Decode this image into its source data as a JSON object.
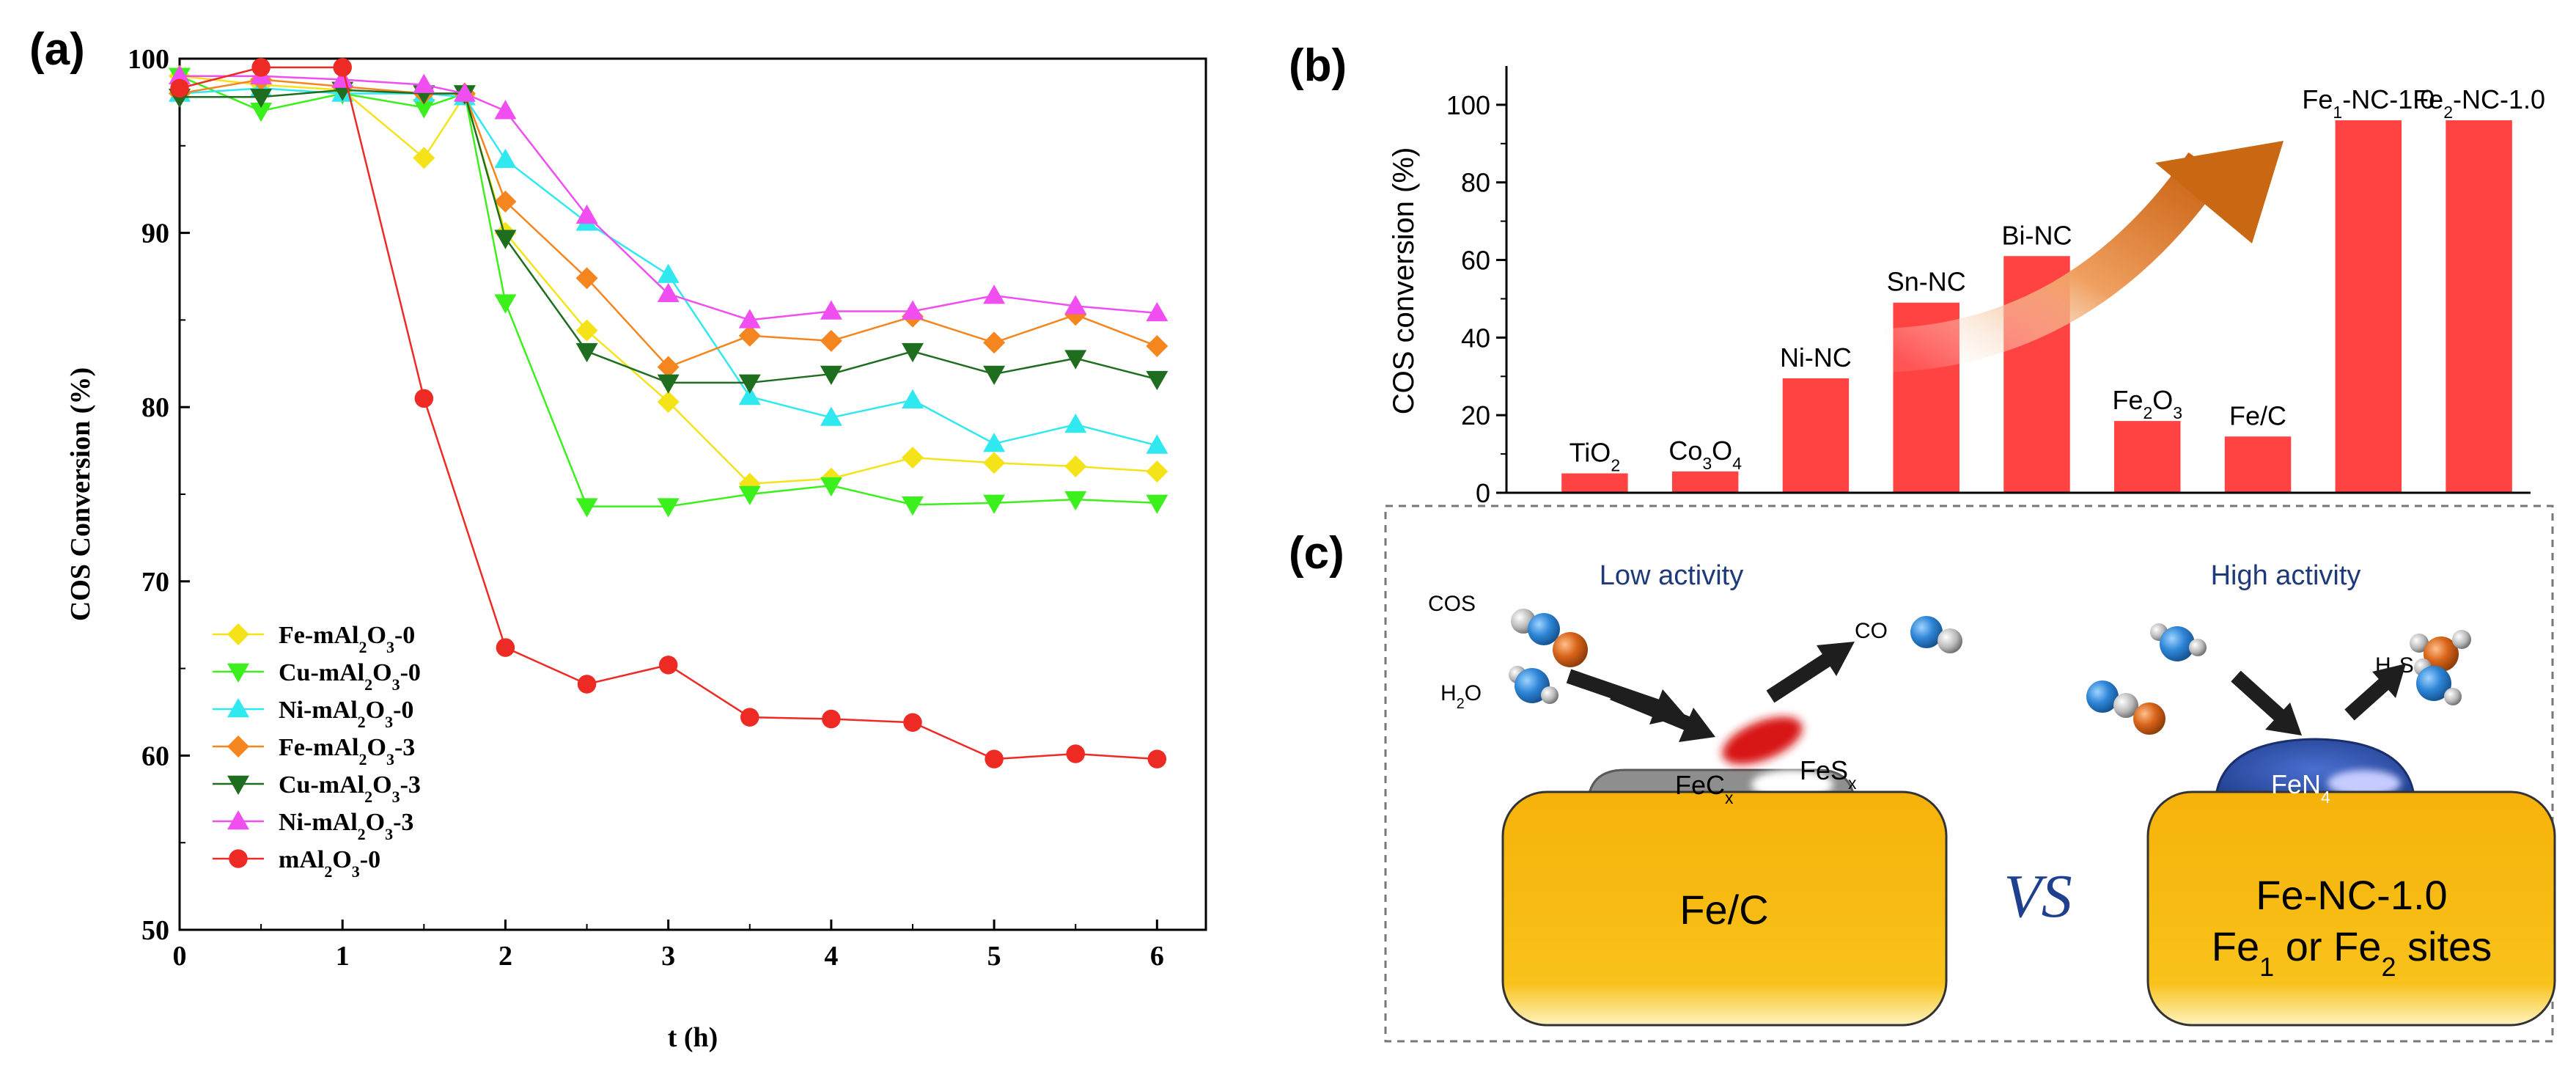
{
  "panel_labels": {
    "a": "(a)",
    "b": "(b)",
    "c": "(c)"
  },
  "chart_data": [
    {
      "type": "line",
      "title": "",
      "xlabel": "t (h)",
      "ylabel": "COS Conversion (%)",
      "xlim": [
        0,
        6.3
      ],
      "ylim": [
        50,
        100
      ],
      "x_ticks": [
        0,
        1,
        2,
        3,
        4,
        5,
        6
      ],
      "y_ticks": [
        50,
        60,
        70,
        80,
        90,
        100
      ],
      "legend_position": "bottom-left",
      "series": [
        {
          "name": "Fe-mAl2O3-0",
          "label_parts": [
            "Fe-mAl",
            "2",
            "O",
            "3",
            "-0"
          ],
          "color": "#f5e31a",
          "marker": "diamond",
          "x": [
            0,
            0.5,
            1,
            1.5,
            1.75,
            2,
            2.5,
            3,
            3.5,
            4,
            4.5,
            5,
            5.5,
            6
          ],
          "y": [
            99.0,
            98.5,
            98.2,
            94.3,
            97.9,
            90.0,
            84.4,
            80.3,
            75.6,
            75.9,
            77.1,
            76.8,
            76.6,
            76.3
          ]
        },
        {
          "name": "Cu-mAl2O3-0",
          "label_parts": [
            "Cu-mAl",
            "2",
            "O",
            "3",
            "-0"
          ],
          "color": "#3cf01e",
          "marker": "triangle-down",
          "x": [
            0,
            0.5,
            1,
            1.5,
            1.75,
            2,
            2.5,
            3,
            3.5,
            4,
            4.5,
            5,
            5.5,
            6
          ],
          "y": [
            99.0,
            97.0,
            98.0,
            97.2,
            98.0,
            86.0,
            74.3,
            74.3,
            75.0,
            75.5,
            74.4,
            74.5,
            74.7,
            74.5
          ]
        },
        {
          "name": "Ni-mAl2O3-0",
          "label_parts": [
            "Ni-mAl",
            "2",
            "O",
            "3",
            "-0"
          ],
          "color": "#30e8f0",
          "marker": "triangle-up",
          "x": [
            0,
            0.5,
            1,
            1.5,
            1.75,
            2,
            2.5,
            3,
            3.5,
            4,
            4.5,
            5,
            5.5,
            6
          ],
          "y": [
            98.0,
            98.3,
            98.0,
            98.0,
            97.8,
            94.2,
            90.6,
            87.6,
            80.6,
            79.4,
            80.4,
            77.9,
            79.0,
            77.8
          ]
        },
        {
          "name": "Fe-mAl2O3-3",
          "label_parts": [
            "Fe-mAl",
            "2",
            "O",
            "3",
            "-3"
          ],
          "color": "#f5851e",
          "marker": "diamond",
          "x": [
            0,
            0.5,
            1,
            1.5,
            1.75,
            2,
            2.5,
            3,
            3.5,
            4,
            4.5,
            5,
            5.5,
            6
          ],
          "y": [
            98.0,
            98.8,
            98.4,
            98.0,
            98.0,
            91.8,
            87.4,
            82.3,
            84.1,
            83.8,
            85.2,
            83.7,
            85.3,
            83.5
          ]
        },
        {
          "name": "Cu-mAl2O3-3",
          "label_parts": [
            "Cu-mAl",
            "2",
            "O",
            "3",
            "-3"
          ],
          "color": "#1f6e1f",
          "marker": "triangle-down",
          "x": [
            0,
            0.5,
            1,
            1.5,
            1.75,
            2,
            2.5,
            3,
            3.5,
            4,
            4.5,
            5,
            5.5,
            6
          ],
          "y": [
            97.8,
            97.8,
            98.2,
            98.0,
            98.0,
            89.7,
            83.2,
            81.4,
            81.4,
            81.9,
            83.2,
            81.9,
            82.8,
            81.6
          ]
        },
        {
          "name": "Ni-mAl2O3-3",
          "label_parts": [
            "Ni-mAl",
            "2",
            "O",
            "3",
            "-3"
          ],
          "color": "#f04ef0",
          "marker": "triangle-up",
          "x": [
            0,
            0.5,
            1,
            1.5,
            1.75,
            2,
            2.5,
            3,
            3.5,
            4,
            4.5,
            5,
            5.5,
            6
          ],
          "y": [
            99.0,
            99.0,
            98.8,
            98.5,
            98.0,
            97.0,
            91.0,
            86.5,
            85.0,
            85.5,
            85.5,
            86.4,
            85.8,
            85.4
          ]
        },
        {
          "name": "mAl2O3-0",
          "label_parts": [
            "mAl",
            "2",
            "O",
            "3",
            "-0"
          ],
          "color": "#ee2a24",
          "marker": "circle",
          "x": [
            0,
            0.5,
            1,
            1.5,
            2,
            2.5,
            3,
            3.5,
            4,
            4.5,
            5,
            5.5,
            6
          ],
          "y": [
            98.3,
            99.5,
            99.5,
            80.5,
            66.2,
            64.1,
            65.2,
            62.2,
            62.1,
            61.9,
            59.8,
            60.1,
            59.8
          ]
        }
      ]
    },
    {
      "type": "bar",
      "title": "",
      "xlabel": "",
      "ylabel": "COS conversion (%)",
      "ylim": [
        0,
        110
      ],
      "y_ticks": [
        0,
        20,
        40,
        60,
        80,
        100
      ],
      "bar_color": "#ff4242",
      "categories": [
        "TiO2",
        "Co3O4",
        "Ni-NC",
        "Sn-NC",
        "Bi-NC",
        "Fe2O3",
        "Fe/C",
        "Fe1-NC-1.0",
        "Fe2-NC-1.0"
      ],
      "category_labels": [
        [
          [
            "TiO",
            ""
          ],
          [
            "2",
            "sub"
          ]
        ],
        [
          [
            "Co",
            ""
          ],
          [
            "3",
            "sub"
          ],
          [
            "O",
            ""
          ],
          [
            "4",
            "sub"
          ]
        ],
        [
          [
            "Ni-NC",
            ""
          ]
        ],
        [
          [
            "Sn-NC",
            ""
          ]
        ],
        [
          [
            "Bi-NC",
            ""
          ]
        ],
        [
          [
            "Fe",
            ""
          ],
          [
            "2",
            "sub"
          ],
          [
            "O",
            ""
          ],
          [
            "3",
            "sub"
          ]
        ],
        [
          [
            "Fe/C",
            ""
          ]
        ],
        [
          [
            "Fe",
            ""
          ],
          [
            "1",
            "sub"
          ],
          [
            "-NC-1.0",
            ""
          ]
        ],
        [
          [
            "Fe",
            ""
          ],
          [
            "2",
            "sub"
          ],
          [
            "-NC-1.0",
            ""
          ]
        ]
      ],
      "values": [
        5,
        5.5,
        29.5,
        49,
        61,
        18.5,
        14.5,
        96,
        96
      ],
      "annotation": "increasing-trend-arrow"
    }
  ],
  "schematic": {
    "left_support": "Fe/C",
    "right_support_line1": "Fe-NC-1.0",
    "right_support_line2_parts": [
      [
        "Fe",
        ""
      ],
      [
        "1",
        "sub"
      ],
      [
        " or Fe",
        ""
      ],
      [
        "2",
        "sub"
      ],
      [
        " sites",
        ""
      ]
    ],
    "vs": "VS",
    "low_activity": "Low activity",
    "high_activity": "High activity",
    "cos": "COS",
    "co": "CO",
    "h2o_parts": [
      [
        "H",
        ""
      ],
      [
        "2",
        "sub"
      ],
      [
        "O",
        ""
      ]
    ],
    "h2s_parts": [
      [
        "H",
        ""
      ],
      [
        "2",
        "sub"
      ],
      [
        "S",
        ""
      ]
    ],
    "fecx_parts": [
      [
        "FeC",
        ""
      ],
      [
        "x",
        "sub"
      ]
    ],
    "fesx_parts": [
      [
        "FeS",
        ""
      ],
      [
        "x",
        "sub"
      ]
    ],
    "fen4_parts": [
      [
        "FeN",
        ""
      ],
      [
        "4",
        "sub"
      ]
    ],
    "colors": {
      "support": "#f8bb10",
      "fecx": "#8a8a8a",
      "fesx": "#dd1111",
      "fen4": "#2d4fb0",
      "title_blue": "#1f3a7a",
      "vs": "#1f3f8f"
    }
  }
}
